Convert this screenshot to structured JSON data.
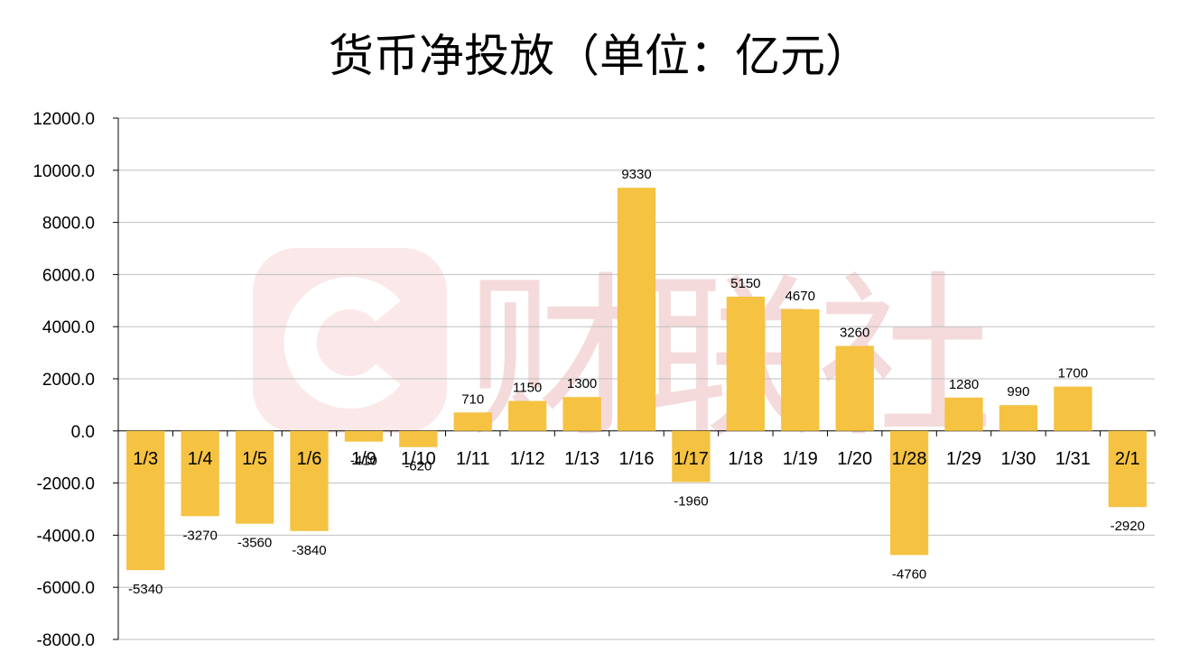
{
  "chart_data": {
    "type": "bar",
    "title": "货币净投放（单位：亿元）",
    "xlabel": "",
    "ylabel": "",
    "categories": [
      "1/3",
      "1/4",
      "1/5",
      "1/6",
      "1/9",
      "1/10",
      "1/11",
      "1/12",
      "1/13",
      "1/16",
      "1/17",
      "1/18",
      "1/19",
      "1/20",
      "1/28",
      "1/29",
      "1/30",
      "1/31",
      "2/1"
    ],
    "values": [
      -5340,
      -3270,
      -3560,
      -3840,
      -410,
      -620,
      710,
      1150,
      1300,
      9330,
      -1960,
      5150,
      4670,
      3260,
      -4760,
      1280,
      990,
      1700,
      -2920
    ],
    "ylim": [
      -8000,
      12000
    ],
    "yticks": [
      12000,
      10000,
      8000,
      6000,
      4000,
      2000,
      0,
      -2000,
      -4000,
      -6000,
      -8000
    ],
    "ytick_labels": [
      "12000.0",
      "10000.0",
      "8000.0",
      "6000.0",
      "4000.0",
      "2000.0",
      "0.0",
      "-2000.0",
      "-4000.0",
      "-6000.0",
      "-8000.0"
    ],
    "grid": true,
    "bar_color": "#F5C242",
    "grid_color": "#BFBFBF",
    "legend": "none"
  },
  "watermark": {
    "text": "财联社",
    "color": "#F3D6D6"
  }
}
